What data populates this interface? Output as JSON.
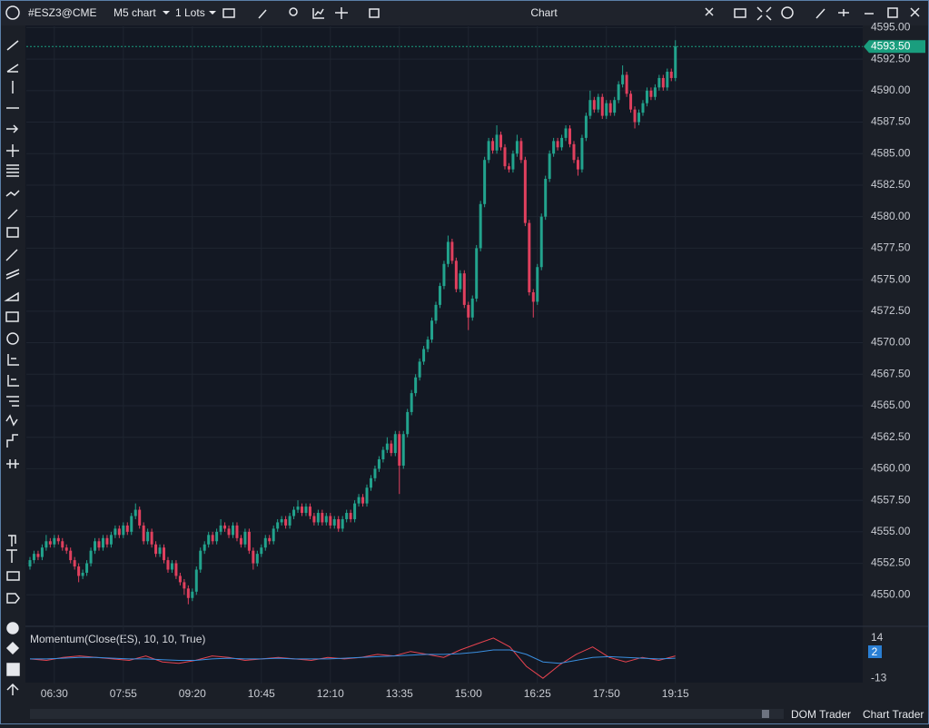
{
  "toolbar": {
    "symbol": "#ESZ3@CME",
    "timeframe": "M5 chart",
    "quantity": "1 Lots",
    "window_title": "Chart"
  },
  "footer": {
    "dom_trader": "DOM Trader",
    "chart_trader": "Chart Trader"
  },
  "chart_data": {
    "type": "candlestick",
    "up_color": "#22a38d",
    "down_color": "#e0405e",
    "grid": true,
    "ylim": [
      4547.5,
      4595.1
    ],
    "yticks": [
      {
        "value": 4550,
        "label": "4550.00"
      },
      {
        "value": 4552.5,
        "label": "4552.50"
      },
      {
        "value": 4555,
        "label": "4555.00"
      },
      {
        "value": 4557.5,
        "label": "4557.50"
      },
      {
        "value": 4560,
        "label": "4560.00"
      },
      {
        "value": 4562.5,
        "label": "4562.50"
      },
      {
        "value": 4565,
        "label": "4565.00"
      },
      {
        "value": 4567.5,
        "label": "4567.50"
      },
      {
        "value": 4570,
        "label": "4570.00"
      },
      {
        "value": 4572.5,
        "label": "4572.50"
      },
      {
        "value": 4575,
        "label": "4575.00"
      },
      {
        "value": 4577.5,
        "label": "4577.50"
      },
      {
        "value": 4580,
        "label": "4580.00"
      },
      {
        "value": 4582.5,
        "label": "4582.50"
      },
      {
        "value": 4585,
        "label": "4585.00"
      },
      {
        "value": 4587.5,
        "label": "4587.50"
      },
      {
        "value": 4590,
        "label": "4590.00"
      },
      {
        "value": 4592.5,
        "label": "4592.50"
      },
      {
        "value": 4595,
        "label": "4595.00"
      }
    ],
    "xticks": [
      {
        "value": 6,
        "label": "06:30"
      },
      {
        "value": 23,
        "label": "07:55"
      },
      {
        "value": 40,
        "label": "09:20"
      },
      {
        "value": 57,
        "label": "10:45"
      },
      {
        "value": 74,
        "label": "12:10"
      },
      {
        "value": 91,
        "label": "13:35"
      },
      {
        "value": 108,
        "label": "15:00"
      },
      {
        "value": 125,
        "label": "16:25"
      },
      {
        "value": 142,
        "label": "17:50"
      },
      {
        "value": 159,
        "label": "19:15"
      }
    ],
    "last_price": {
      "value": 4593.5,
      "label": "4593.50",
      "color": "#1a9e7e"
    },
    "ohlc": [
      [
        4552.25,
        4553.0,
        4552.0,
        4552.75
      ],
      [
        4552.75,
        4553.5,
        4552.5,
        4553.25
      ],
      [
        4553.25,
        4553.5,
        4552.75,
        4553.0
      ],
      [
        4553.0,
        4554.0,
        4552.75,
        4553.75
      ],
      [
        4553.75,
        4554.75,
        4553.5,
        4554.25
      ],
      [
        4554.25,
        4554.5,
        4553.75,
        4554.0
      ],
      [
        4554.0,
        4554.75,
        4553.75,
        4554.5
      ],
      [
        4554.5,
        4554.75,
        4554.0,
        4554.25
      ],
      [
        4554.25,
        4554.5,
        4553.5,
        4553.75
      ],
      [
        4553.75,
        4554.0,
        4553.25,
        4553.5
      ],
      [
        4553.5,
        4553.75,
        4552.5,
        4552.75
      ],
      [
        4552.75,
        4553.0,
        4552.0,
        4552.25
      ],
      [
        4552.25,
        4552.5,
        4551.0,
        4551.5
      ],
      [
        4551.5,
        4552.0,
        4551.25,
        4551.75
      ],
      [
        4551.75,
        4552.75,
        4551.5,
        4552.5
      ],
      [
        4552.5,
        4553.75,
        4552.25,
        4553.5
      ],
      [
        4553.5,
        4554.5,
        4553.25,
        4554.25
      ],
      [
        4554.25,
        4554.5,
        4553.5,
        4553.75
      ],
      [
        4553.75,
        4554.75,
        4553.5,
        4554.5
      ],
      [
        4554.5,
        4554.75,
        4553.75,
        4554.0
      ],
      [
        4554.0,
        4555.0,
        4553.75,
        4554.75
      ],
      [
        4554.75,
        4555.5,
        4554.5,
        4555.25
      ],
      [
        4555.25,
        4555.5,
        4554.5,
        4554.75
      ],
      [
        4554.75,
        4555.75,
        4554.5,
        4555.5
      ],
      [
        4555.5,
        4555.75,
        4554.75,
        4555.0
      ],
      [
        4555.0,
        4556.5,
        4554.75,
        4556.25
      ],
      [
        4556.25,
        4557.25,
        4556.0,
        4556.75
      ],
      [
        4556.75,
        4557.0,
        4555.25,
        4555.5
      ],
      [
        4555.5,
        4555.75,
        4554.0,
        4554.25
      ],
      [
        4554.25,
        4555.25,
        4554.0,
        4555.0
      ],
      [
        4555.0,
        4555.25,
        4553.75,
        4554.0
      ],
      [
        4554.0,
        4554.25,
        4553.0,
        4553.25
      ],
      [
        4553.25,
        4554.0,
        4553.0,
        4553.75
      ],
      [
        4553.75,
        4554.0,
        4552.5,
        4552.75
      ],
      [
        4552.75,
        4553.0,
        4551.75,
        4552.0
      ],
      [
        4552.0,
        4552.75,
        4551.75,
        4552.5
      ],
      [
        4552.5,
        4552.75,
        4551.25,
        4551.5
      ],
      [
        4551.5,
        4551.75,
        4550.75,
        4551.0
      ],
      [
        4551.0,
        4551.25,
        4550.0,
        4550.5
      ],
      [
        4550.5,
        4550.75,
        4549.25,
        4549.75
      ],
      [
        4549.75,
        4550.5,
        4549.5,
        4550.25
      ],
      [
        4550.25,
        4552.25,
        4550.0,
        4552.0
      ],
      [
        4552.0,
        4553.75,
        4551.75,
        4553.5
      ],
      [
        4553.5,
        4554.25,
        4553.25,
        4554.0
      ],
      [
        4554.0,
        4555.0,
        4553.75,
        4554.75
      ],
      [
        4554.75,
        4555.0,
        4554.0,
        4554.25
      ],
      [
        4554.25,
        4555.25,
        4554.0,
        4555.0
      ],
      [
        4555.0,
        4556.0,
        4554.75,
        4555.5
      ],
      [
        4555.5,
        4555.75,
        4555.0,
        4555.25
      ],
      [
        4555.25,
        4555.5,
        4554.5,
        4554.75
      ],
      [
        4554.75,
        4555.75,
        4554.5,
        4555.5
      ],
      [
        4555.5,
        4555.75,
        4554.25,
        4554.5
      ],
      [
        4554.5,
        4554.75,
        4553.75,
        4554.0
      ],
      [
        4554.0,
        4555.25,
        4553.75,
        4555.0
      ],
      [
        4555.0,
        4555.25,
        4553.25,
        4553.5
      ],
      [
        4553.5,
        4553.75,
        4552.0,
        4552.5
      ],
      [
        4552.5,
        4553.5,
        4552.25,
        4553.25
      ],
      [
        4553.25,
        4554.0,
        4553.0,
        4553.75
      ],
      [
        4553.75,
        4554.75,
        4553.5,
        4554.5
      ],
      [
        4554.5,
        4554.75,
        4554.0,
        4554.25
      ],
      [
        4554.25,
        4555.5,
        4554.0,
        4555.25
      ],
      [
        4555.25,
        4556.0,
        4555.0,
        4555.75
      ],
      [
        4555.75,
        4556.25,
        4555.5,
        4556.0
      ],
      [
        4556.0,
        4556.25,
        4555.25,
        4555.5
      ],
      [
        4555.5,
        4556.5,
        4555.25,
        4556.25
      ],
      [
        4556.25,
        4557.0,
        4556.0,
        4556.75
      ],
      [
        4556.75,
        4557.5,
        4556.5,
        4557.0
      ],
      [
        4557.0,
        4557.25,
        4556.25,
        4556.5
      ],
      [
        4556.5,
        4557.25,
        4556.25,
        4557.0
      ],
      [
        4557.0,
        4557.25,
        4556.0,
        4556.25
      ],
      [
        4556.25,
        4556.5,
        4555.5,
        4555.75
      ],
      [
        4555.75,
        4556.75,
        4555.5,
        4556.5
      ],
      [
        4556.5,
        4556.75,
        4555.5,
        4555.75
      ],
      [
        4555.75,
        4556.5,
        4555.5,
        4556.25
      ],
      [
        4556.25,
        4556.5,
        4555.25,
        4555.5
      ],
      [
        4555.5,
        4556.25,
        4555.25,
        4556.0
      ],
      [
        4556.0,
        4556.25,
        4555.0,
        4555.25
      ],
      [
        4555.25,
        4556.25,
        4555.0,
        4556.0
      ],
      [
        4556.0,
        4556.75,
        4555.75,
        4556.5
      ],
      [
        4556.5,
        4556.75,
        4555.75,
        4556.0
      ],
      [
        4556.0,
        4557.5,
        4555.75,
        4557.25
      ],
      [
        4557.25,
        4558.0,
        4557.0,
        4557.75
      ],
      [
        4557.75,
        4558.0,
        4557.0,
        4557.25
      ],
      [
        4557.25,
        4558.75,
        4557.0,
        4558.5
      ],
      [
        4558.5,
        4559.5,
        4558.25,
        4559.25
      ],
      [
        4559.25,
        4560.25,
        4559.0,
        4560.0
      ],
      [
        4560.0,
        4561.0,
        4559.75,
        4560.75
      ],
      [
        4560.75,
        4561.75,
        4560.5,
        4561.5
      ],
      [
        4561.5,
        4562.5,
        4561.25,
        4562.0
      ],
      [
        4562.0,
        4562.25,
        4561.0,
        4561.25
      ],
      [
        4561.25,
        4563.0,
        4561.0,
        4562.75
      ],
      [
        4562.75,
        4563.0,
        4558.0,
        4560.25
      ],
      [
        4560.25,
        4563.0,
        4560.0,
        4562.75
      ],
      [
        4562.75,
        4564.75,
        4562.5,
        4564.5
      ],
      [
        4564.5,
        4566.25,
        4564.25,
        4566.0
      ],
      [
        4566.0,
        4567.5,
        4565.75,
        4567.25
      ],
      [
        4567.25,
        4568.75,
        4567.0,
        4568.5
      ],
      [
        4568.5,
        4569.75,
        4568.25,
        4569.5
      ],
      [
        4569.5,
        4570.5,
        4569.25,
        4570.25
      ],
      [
        4570.25,
        4572.0,
        4570.0,
        4571.75
      ],
      [
        4571.75,
        4573.25,
        4571.5,
        4573.0
      ],
      [
        4573.0,
        4574.75,
        4572.75,
        4574.5
      ],
      [
        4574.5,
        4576.5,
        4574.25,
        4576.25
      ],
      [
        4576.25,
        4578.5,
        4576.0,
        4578.0
      ],
      [
        4578.0,
        4578.25,
        4576.25,
        4576.5
      ],
      [
        4576.5,
        4576.75,
        4574.0,
        4574.25
      ],
      [
        4574.25,
        4575.75,
        4574.0,
        4575.5
      ],
      [
        4575.5,
        4575.75,
        4572.75,
        4573.0
      ],
      [
        4573.0,
        4573.25,
        4571.0,
        4572.0
      ],
      [
        4572.0,
        4573.75,
        4571.75,
        4573.5
      ],
      [
        4573.5,
        4577.75,
        4573.25,
        4577.5
      ],
      [
        4577.5,
        4581.25,
        4577.25,
        4581.0
      ],
      [
        4581.0,
        4584.75,
        4580.75,
        4584.5
      ],
      [
        4584.5,
        4586.25,
        4584.25,
        4586.0
      ],
      [
        4586.0,
        4586.25,
        4585.0,
        4585.25
      ],
      [
        4585.25,
        4587.25,
        4585.0,
        4586.5
      ],
      [
        4586.5,
        4586.75,
        4585.25,
        4585.5
      ],
      [
        4585.5,
        4585.75,
        4583.75,
        4584.0
      ],
      [
        4584.0,
        4584.25,
        4583.5,
        4583.75
      ],
      [
        4583.75,
        4585.25,
        4583.5,
        4585.0
      ],
      [
        4585.0,
        4586.5,
        4584.75,
        4586.0
      ],
      [
        4586.0,
        4586.25,
        4584.25,
        4584.5
      ],
      [
        4584.5,
        4584.75,
        4579.25,
        4579.5
      ],
      [
        4579.5,
        4579.75,
        4573.75,
        4574.0
      ],
      [
        4574.0,
        4574.25,
        4572.0,
        4573.25
      ],
      [
        4573.25,
        4576.25,
        4573.0,
        4576.0
      ],
      [
        4576.0,
        4580.25,
        4575.75,
        4580.0
      ],
      [
        4580.0,
        4583.25,
        4579.75,
        4583.0
      ],
      [
        4583.0,
        4585.25,
        4582.75,
        4585.0
      ],
      [
        4585.0,
        4586.25,
        4584.75,
        4586.0
      ],
      [
        4586.0,
        4586.25,
        4585.25,
        4585.5
      ],
      [
        4585.5,
        4586.5,
        4585.25,
        4586.25
      ],
      [
        4586.25,
        4587.25,
        4586.0,
        4587.0
      ],
      [
        4587.0,
        4587.25,
        4585.5,
        4585.75
      ],
      [
        4585.75,
        4586.0,
        4584.25,
        4584.5
      ],
      [
        4584.5,
        4584.75,
        4583.25,
        4583.75
      ],
      [
        4583.75,
        4586.5,
        4583.5,
        4586.25
      ],
      [
        4586.25,
        4588.25,
        4586.0,
        4588.0
      ],
      [
        4588.0,
        4590.0,
        4587.75,
        4589.25
      ],
      [
        4589.25,
        4589.5,
        4588.25,
        4588.5
      ],
      [
        4588.5,
        4589.75,
        4588.25,
        4589.5
      ],
      [
        4589.5,
        4589.75,
        4587.75,
        4588.0
      ],
      [
        4588.0,
        4589.25,
        4587.75,
        4589.0
      ],
      [
        4589.0,
        4589.25,
        4588.0,
        4588.25
      ],
      [
        4588.25,
        4589.5,
        4588.0,
        4589.25
      ],
      [
        4589.25,
        4590.75,
        4589.0,
        4590.5
      ],
      [
        4590.5,
        4592.0,
        4590.25,
        4591.25
      ],
      [
        4591.25,
        4591.5,
        4589.5,
        4589.75
      ],
      [
        4589.75,
        4590.0,
        4588.25,
        4588.5
      ],
      [
        4588.5,
        4588.75,
        4587.0,
        4587.5
      ],
      [
        4587.5,
        4588.5,
        4587.25,
        4588.25
      ],
      [
        4588.25,
        4589.25,
        4588.0,
        4589.0
      ],
      [
        4589.0,
        4590.25,
        4588.75,
        4590.0
      ],
      [
        4590.0,
        4590.25,
        4589.25,
        4589.5
      ],
      [
        4589.5,
        4590.5,
        4589.25,
        4590.25
      ],
      [
        4590.25,
        4591.25,
        4590.0,
        4591.0
      ],
      [
        4591.0,
        4591.25,
        4590.0,
        4590.25
      ],
      [
        4590.25,
        4591.75,
        4590.0,
        4591.5
      ],
      [
        4591.5,
        4591.75,
        4590.75,
        4591.0
      ],
      [
        4591.0,
        4594.0,
        4590.75,
        4593.5
      ]
    ],
    "indicator": {
      "type": "line",
      "title": "Momentum(Close(ES), 10, 10, True)",
      "ylim": [
        -16.5,
        20
      ],
      "yticks": [
        14,
        -13
      ],
      "badge": "2",
      "badge_color": "#2a7fd4",
      "series": [
        {
          "color": "#e8434f",
          "values": [
            0,
            -1,
            1,
            2,
            1,
            0,
            -1,
            2,
            -2,
            -3,
            -1,
            2,
            1,
            -1,
            0,
            1,
            0,
            -1,
            1,
            0,
            1,
            3,
            2,
            5,
            3,
            1,
            6,
            10,
            14,
            8,
            -5,
            -13,
            -4,
            3,
            8,
            1,
            -2,
            1,
            -1,
            2
          ]
        },
        {
          "color": "#3a8fe0",
          "values": [
            0,
            0,
            0.5,
            1,
            1,
            0.5,
            0,
            0,
            -0.5,
            -1,
            -1,
            0,
            0.5,
            0,
            0,
            0.5,
            0,
            0,
            0,
            0.5,
            1,
            1.5,
            2,
            2.5,
            3,
            3,
            3.5,
            4.5,
            6,
            6,
            3,
            -2,
            -3,
            -1,
            1,
            1.5,
            1,
            0.5,
            0,
            0.5
          ]
        }
      ]
    }
  }
}
